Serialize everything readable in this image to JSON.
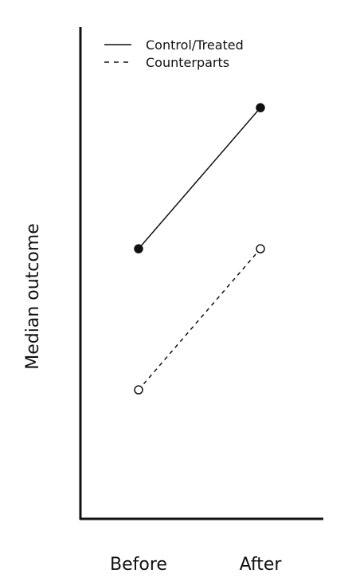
{
  "chart_data": {
    "type": "line",
    "title": "",
    "xlabel": "",
    "ylabel": "Median outcome",
    "categories": [
      "Before",
      "After"
    ],
    "y_ticks_shown": false,
    "legend_position": "top-left",
    "series": [
      {
        "name": "Control/Treated",
        "values": [
          0.45,
          0.8
        ],
        "line_style": "solid",
        "marker": "filled-circle",
        "color": "#111111"
      },
      {
        "name": "Counterparts",
        "values": [
          0.1,
          0.45
        ],
        "line_style": "dashed",
        "marker": "open-circle",
        "color": "#111111"
      }
    ],
    "ylim": [
      -0.22,
      1.0
    ]
  }
}
